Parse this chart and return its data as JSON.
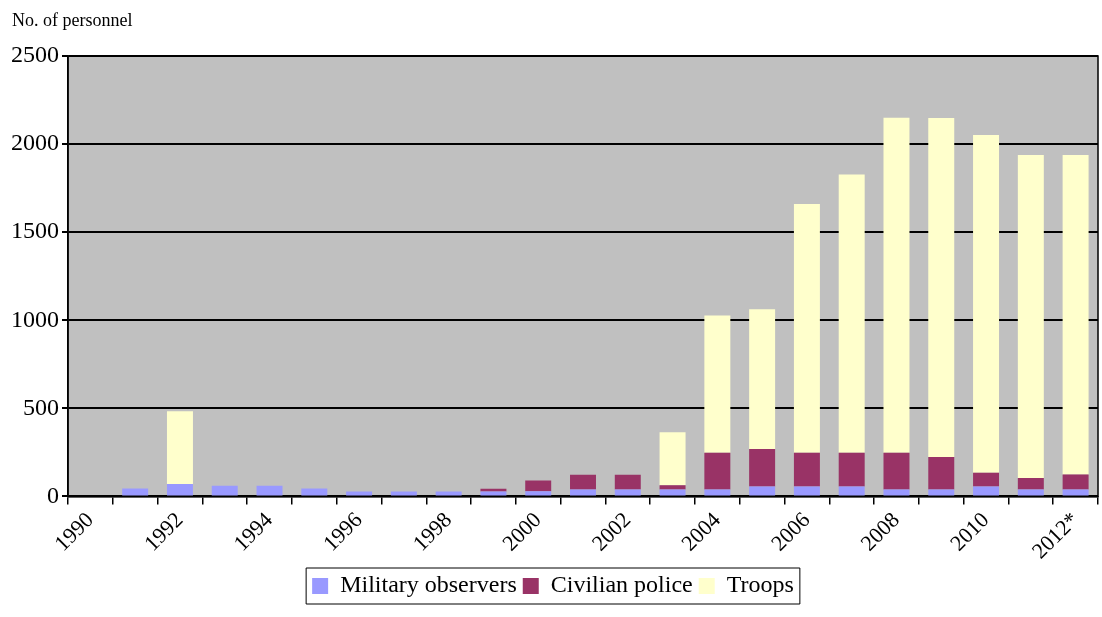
{
  "chart_data": {
    "type": "bar",
    "ylabel": "No. of personnel",
    "categories": [
      "1990",
      null,
      "1992",
      null,
      "1994",
      null,
      "1996",
      null,
      "1998",
      null,
      "2000",
      null,
      "2002",
      null,
      "2004",
      null,
      "2006",
      null,
      "2008",
      null,
      "2010",
      null,
      "2012*"
    ],
    "series": [
      {
        "name": "Military observers",
        "color": "#9999ff",
        "values": [
          null,
          45,
          70,
          60,
          60,
          45,
          28,
          28,
          28,
          28,
          30,
          40,
          40,
          40,
          40,
          57,
          57,
          57,
          40,
          40,
          57,
          40,
          40
        ]
      },
      {
        "name": "Civilian police",
        "color": "#993366",
        "values": [
          null,
          null,
          null,
          null,
          null,
          null,
          null,
          null,
          null,
          15,
          60,
          83,
          83,
          24,
          208,
          212,
          191,
          191,
          208,
          184,
          77,
          64,
          84
        ]
      },
      {
        "name": "Troops",
        "color": "#ffffcc",
        "values": [
          null,
          null,
          413,
          null,
          null,
          null,
          null,
          null,
          null,
          null,
          null,
          null,
          null,
          300,
          779,
          793,
          1412,
          1579,
          1902,
          1924,
          1917,
          1834,
          1814
        ]
      }
    ],
    "stacked": true,
    "ylim": [
      0,
      2500
    ],
    "yticks": [
      0,
      500,
      1000,
      1500,
      2000,
      2500
    ],
    "grid": "y",
    "legend": "bottom"
  }
}
